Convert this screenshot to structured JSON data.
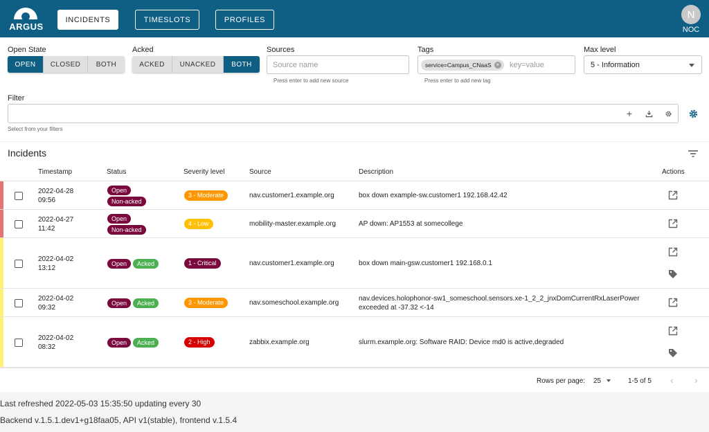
{
  "app": {
    "logo_text": "ARGUS",
    "nav": [
      {
        "label": "INCIDENTS",
        "active": true
      },
      {
        "label": "TIMESLOTS",
        "active": false
      },
      {
        "label": "PROFILES",
        "active": false
      }
    ],
    "user": {
      "initial": "N",
      "name": "NOC"
    }
  },
  "filters": {
    "open_state": {
      "label": "Open State",
      "options": [
        "OPEN",
        "CLOSED",
        "BOTH"
      ],
      "selected": "OPEN"
    },
    "acked": {
      "label": "Acked",
      "options": [
        "ACKED",
        "UNACKED",
        "BOTH"
      ],
      "selected": "BOTH"
    },
    "sources": {
      "label": "Sources",
      "placeholder": "Source name",
      "hint": "Press enter to add new source"
    },
    "tags": {
      "label": "Tags",
      "chip": "service=Campus_CNaaS",
      "placeholder": "key=value",
      "hint": "Press enter to add new tag"
    },
    "max_level": {
      "label": "Max level",
      "value": "5 - Information"
    },
    "filter": {
      "label": "Filter",
      "hint": "Select from your filters"
    }
  },
  "incidents": {
    "title": "Incidents",
    "columns": [
      "Timestamp",
      "Status",
      "Severity level",
      "Source",
      "Description",
      "Actions"
    ],
    "rows": [
      {
        "date": "2022-04-28",
        "time": "09:56",
        "status": [
          "Open",
          "Non-acked"
        ],
        "severity": "3 - Moderate",
        "source": "nav.customer1.example.org",
        "description": "box down example-sw.customer1 192.168.42.42",
        "bar_color": "#e57373",
        "has_tag": false
      },
      {
        "date": "2022-04-27",
        "time": "11:42",
        "status": [
          "Open",
          "Non-acked"
        ],
        "severity": "4 - Low",
        "source": "mobility-master.example.org",
        "description": "AP down: AP1553 at somecollege",
        "bar_color": "#e57373",
        "has_tag": false
      },
      {
        "date": "2022-04-02",
        "time": "13:12",
        "status": [
          "Open",
          "Acked"
        ],
        "severity": "1 - Critical",
        "source": "nav.customer1.example.org",
        "description": "box down main-gsw.customer1 192.168.0.1",
        "bar_color": "#fff176",
        "has_tag": true
      },
      {
        "date": "2022-04-02",
        "time": "09:32",
        "status": [
          "Open",
          "Acked"
        ],
        "severity": "3 - Moderate",
        "source": "nav.someschool.example.org",
        "description": "nav.devices.holophonor-sw1_someschool.sensors.xe-1_2_2_jnxDomCurrentRxLaserPower",
        "description2": "exceeded at -37.32 <-14",
        "bar_color": "#fff176",
        "has_tag": false
      },
      {
        "date": "2022-04-02",
        "time": "08:32",
        "status": [
          "Open",
          "Acked"
        ],
        "severity": "2 - High",
        "source": "zabbix.example.org",
        "description": "slurm.example.org: Software RAID: Device md0 is active,degraded",
        "bar_color": "#fff176",
        "has_tag": true
      }
    ],
    "severity_colors": {
      "1 - Critical": "#7a0a3d",
      "2 - High": "#d50000",
      "3 - Moderate": "#ff9800",
      "4 - Low": "#ffc107"
    },
    "footer": {
      "rows_per_page_label": "Rows per page:",
      "rows_per_page": "25",
      "range": "1-5 of 5"
    }
  },
  "status": {
    "last_refreshed": "Last refreshed 2022-05-03 15:35:50 updating every 30",
    "versions": "Backend v.1.5.1.dev1+g18faa05, API v1(stable), frontend v.1.5.4"
  }
}
